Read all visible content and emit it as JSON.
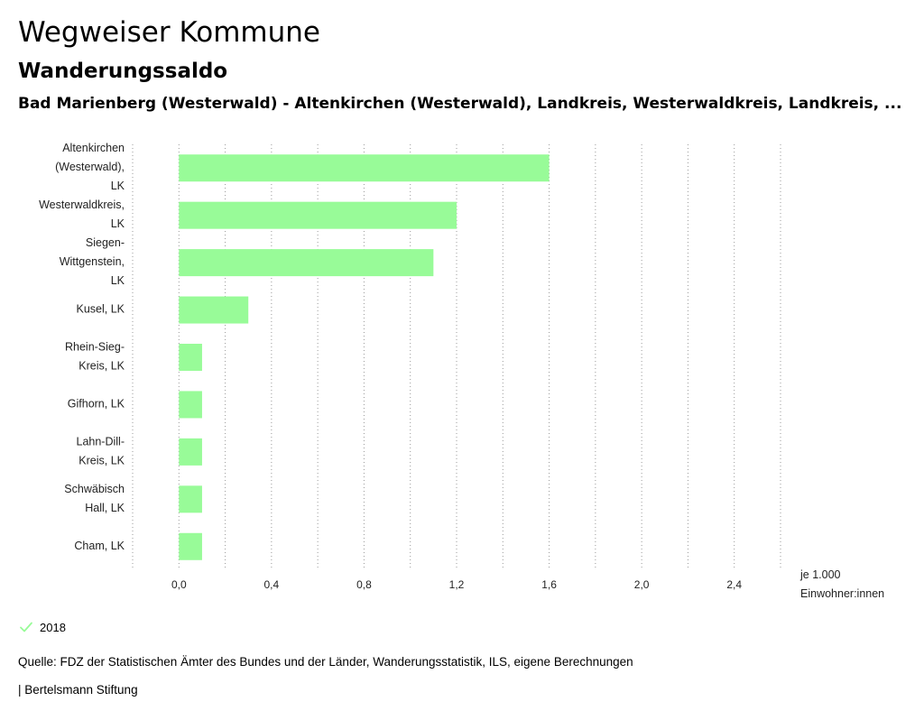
{
  "header": {
    "title": "Wegweiser Kommune",
    "subtitle": "Wanderungssaldo",
    "region": "Bad Marienberg (Westerwald) - Altenkirchen (Westerwald), Landkreis, Westerwaldkreis, Landkreis, ..."
  },
  "chart_data": {
    "type": "bar",
    "orientation": "horizontal",
    "categories": [
      [
        "Altenkirchen",
        "(Westerwald),",
        "LK"
      ],
      [
        "Westerwaldkreis,",
        "LK"
      ],
      [
        "Siegen-",
        "Wittgenstein,",
        "LK"
      ],
      [
        "Kusel, LK"
      ],
      [
        "Rhein-Sieg-",
        "Kreis, LK"
      ],
      [
        "Gifhorn, LK"
      ],
      [
        "Lahn-Dill-",
        "Kreis, LK"
      ],
      [
        "Schwäbisch",
        "Hall, LK"
      ],
      [
        "Cham, LK"
      ]
    ],
    "series": [
      {
        "name": "2018",
        "values": [
          1.6,
          1.2,
          1.1,
          0.3,
          0.1,
          0.1,
          0.1,
          0.1,
          0.1
        ]
      }
    ],
    "xlim": [
      -0.2,
      2.6
    ],
    "xticks": [
      "0,0",
      "0,4",
      "0,8",
      "1,2",
      "1,6",
      "2,0",
      "2,4"
    ],
    "xtick_values": [
      0.0,
      0.4,
      0.8,
      1.2,
      1.6,
      2.0,
      2.4
    ],
    "grid_values": [
      -0.2,
      0.0,
      0.2,
      0.4,
      0.6,
      0.8,
      1.0,
      1.2,
      1.4,
      1.6,
      1.8,
      2.0,
      2.2,
      2.4,
      2.6
    ],
    "unit_label": [
      "je 1.000",
      "Einwohner:innen"
    ],
    "bar_color": "#98fb98",
    "grid": true
  },
  "legend": {
    "label": "2018",
    "color": "#98fb98",
    "icon": "check-icon"
  },
  "footer": {
    "source": "Quelle: FDZ der Statistischen Ämter des Bundes und der Länder, Wanderungsstatistik, ILS, eigene Berechnungen",
    "brand": "| Bertelsmann Stiftung"
  }
}
